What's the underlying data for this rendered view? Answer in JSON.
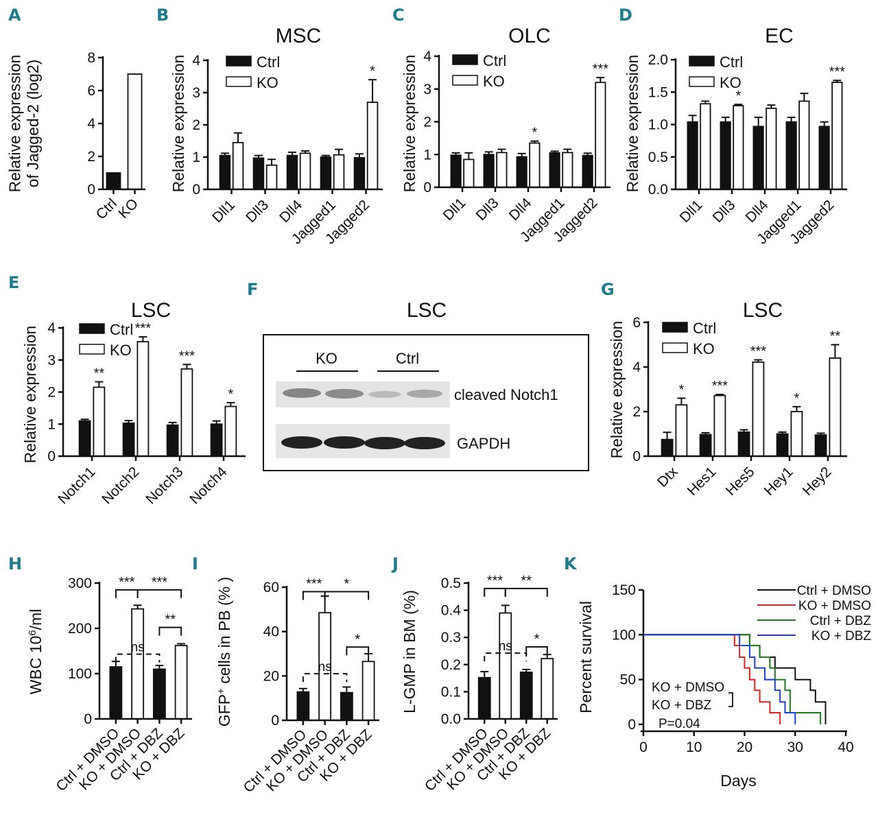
{
  "panel_labels": [
    "A",
    "B",
    "C",
    "D",
    "E",
    "F",
    "G",
    "H",
    "I",
    "J",
    "K"
  ],
  "colors": {
    "ctrl": "#111111",
    "ko": "#ffffff",
    "edge": "#111111",
    "label": "#1e7c8c",
    "km_ctrl_dmso": "#111111",
    "km_ko_dmso": "#e02020",
    "km_ctrl_dbz": "#1f7a1f",
    "km_ko_dbz": "#1f3fd6"
  },
  "legend": {
    "ctrl": "Ctrl",
    "ko": "KO"
  },
  "blot": {
    "title": "LSC",
    "groups": [
      "KO",
      "Ctrl"
    ],
    "bands": [
      "cleaved Notch1",
      "GAPDH"
    ]
  },
  "chart_data": [
    {
      "id": "A",
      "type": "bar",
      "title": "",
      "ylabel": "Relative expression of Jagged-2 (log2)",
      "ylabel_lines": [
        "Relative expression",
        "of Jagged-2 (log2)"
      ],
      "categories": [
        "Ctrl",
        "KO"
      ],
      "values": [
        1.0,
        7.0
      ],
      "fills": [
        "ctrl",
        "ko"
      ],
      "ylim": [
        0,
        8
      ],
      "yticks": [
        "0",
        "2",
        "4",
        "6",
        "8"
      ]
    },
    {
      "id": "B",
      "type": "bar",
      "title": "MSC",
      "ylabel": "Relative expression",
      "categories": [
        "Dll1",
        "Dll3",
        "Dll4",
        "Jagged1",
        "Jagged2"
      ],
      "series": [
        {
          "name": "Ctrl",
          "values": [
            1.05,
            0.97,
            1.05,
            1.0,
            0.98
          ],
          "err": [
            0.07,
            0.08,
            0.1,
            0.05,
            0.12
          ]
        },
        {
          "name": "KO",
          "values": [
            1.45,
            0.75,
            1.12,
            1.07,
            2.7
          ],
          "err": [
            0.3,
            0.18,
            0.07,
            0.17,
            0.7
          ]
        }
      ],
      "stars": [
        "",
        "",
        "",
        "",
        "*"
      ],
      "ylim": [
        0,
        4
      ],
      "yticks": [
        "0",
        "1",
        "2",
        "3",
        "4"
      ]
    },
    {
      "id": "C",
      "type": "bar",
      "title": "OLC",
      "ylabel": "Relative expression",
      "categories": [
        "Dll1",
        "Dll3",
        "Dll4",
        "Jagged1",
        "Jagged2"
      ],
      "series": [
        {
          "name": "Ctrl",
          "values": [
            0.98,
            1.0,
            0.93,
            1.05,
            0.97
          ],
          "err": [
            0.07,
            0.08,
            0.1,
            0.05,
            0.07
          ]
        },
        {
          "name": "KO",
          "values": [
            0.85,
            1.06,
            1.35,
            1.06,
            3.2
          ],
          "err": [
            0.2,
            0.1,
            0.06,
            0.1,
            0.15
          ]
        }
      ],
      "stars": [
        "",
        "",
        "*",
        "",
        "***"
      ],
      "ylim": [
        0,
        4
      ],
      "yticks": [
        "0",
        "1",
        "2",
        "3",
        "4"
      ]
    },
    {
      "id": "D",
      "type": "bar",
      "title": "EC",
      "ylabel": "Relative expression",
      "categories": [
        "Dll1",
        "Dll3",
        "Dll4",
        "Jagged1",
        "Jagged2"
      ],
      "series": [
        {
          "name": "Ctrl",
          "values": [
            1.04,
            1.04,
            0.97,
            1.04,
            0.97
          ],
          "err": [
            0.1,
            0.07,
            0.14,
            0.07,
            0.07
          ]
        },
        {
          "name": "KO",
          "values": [
            1.32,
            1.29,
            1.25,
            1.36,
            1.65
          ],
          "err": [
            0.04,
            0.02,
            0.05,
            0.12,
            0.03
          ]
        }
      ],
      "stars": [
        "",
        "*",
        "",
        "",
        "***"
      ],
      "ylim": [
        0,
        2
      ],
      "yticks": [
        "0.0",
        "0.5",
        "1.0",
        "1.5",
        "2.0"
      ]
    },
    {
      "id": "E",
      "type": "bar",
      "title": "LSC",
      "ylabel": "Relative expression",
      "categories": [
        "Notch1",
        "Notch2",
        "Notch3",
        "Notch4"
      ],
      "series": [
        {
          "name": "Ctrl",
          "values": [
            1.1,
            1.03,
            0.97,
            1.0
          ],
          "err": [
            0.05,
            0.08,
            0.08,
            0.1
          ]
        },
        {
          "name": "KO",
          "values": [
            2.15,
            3.57,
            2.72,
            1.55
          ],
          "err": [
            0.17,
            0.15,
            0.14,
            0.12
          ]
        }
      ],
      "stars": [
        "**",
        "***",
        "***",
        "*"
      ],
      "ylim": [
        0,
        4
      ],
      "yticks": [
        "0",
        "1",
        "2",
        "3",
        "4"
      ]
    },
    {
      "id": "G",
      "type": "bar",
      "title": "LSC",
      "ylabel": "Relative expression",
      "categories": [
        "Dtx",
        "Hes1",
        "Hes5",
        "Hey1",
        "Hey2"
      ],
      "series": [
        {
          "name": "Ctrl",
          "values": [
            0.75,
            0.97,
            1.08,
            1.0,
            0.95
          ],
          "err": [
            0.32,
            0.08,
            0.1,
            0.08,
            0.08
          ]
        },
        {
          "name": "KO",
          "values": [
            2.3,
            2.72,
            4.22,
            2.0,
            4.4
          ],
          "err": [
            0.3,
            0.05,
            0.1,
            0.22,
            0.6
          ]
        }
      ],
      "stars": [
        "*",
        "***",
        "***",
        "*",
        "**"
      ],
      "ylim": [
        0,
        6
      ],
      "yticks": [
        "0",
        "2",
        "4",
        "6"
      ]
    },
    {
      "id": "H",
      "type": "bar",
      "title": "",
      "ylabel": "WBC 10^6/ml",
      "ylabel_parts": [
        "WBC 10",
        "6",
        "/ml"
      ],
      "categories": [
        "Ctrl + DMSO",
        "KO + DMSO",
        "Ctrl + DBZ",
        "KO + DBZ"
      ],
      "values": [
        115,
        243,
        110,
        162
      ],
      "err": [
        12,
        8,
        8,
        4
      ],
      "fills": [
        "ctrl",
        "ko",
        "ctrl",
        "ko"
      ],
      "ylim": [
        0,
        300
      ],
      "yticks": [
        "0",
        "100",
        "200",
        "300"
      ],
      "brackets": [
        {
          "from": 0,
          "to": 1,
          "level": 285,
          "label": "***",
          "dashed": false
        },
        {
          "from": 1,
          "to": 3,
          "level": 285,
          "label": "***",
          "dashed": false
        },
        {
          "from": 2,
          "to": 3,
          "level": 202,
          "label": "**",
          "dashed": false
        },
        {
          "from": 0,
          "to": 2,
          "level": 143,
          "label": "ns",
          "dashed": true
        }
      ]
    },
    {
      "id": "I",
      "type": "bar",
      "title": "",
      "ylabel": "GFP+ cells in PB (%)",
      "ylabel_parts": [
        "GFP",
        "+",
        " cells in PB (% )"
      ],
      "categories": [
        "Ctrl + DMSO",
        "KO + DMSO",
        "Ctrl + DBZ",
        "KO + DBZ"
      ],
      "values": [
        12.8,
        48.5,
        12.5,
        26.5
      ],
      "err": [
        1.5,
        7.5,
        2.5,
        3.5
      ],
      "fills": [
        "ctrl",
        "ko",
        "ctrl",
        "ko"
      ],
      "ylim": [
        0,
        60
      ],
      "yticks": [
        "0",
        "20",
        "40",
        "60"
      ],
      "brackets": [
        {
          "from": 0,
          "to": 1,
          "level": 58,
          "label": "***",
          "dashed": false
        },
        {
          "from": 1,
          "to": 3,
          "level": 58,
          "label": "*",
          "dashed": false
        },
        {
          "from": 2,
          "to": 3,
          "level": 33,
          "label": "*",
          "dashed": false
        },
        {
          "from": 0,
          "to": 2,
          "level": 21,
          "label": "ns",
          "dashed": true
        }
      ]
    },
    {
      "id": "J",
      "type": "bar",
      "title": "",
      "ylabel": "L-GMP in BM (%)",
      "categories": [
        "Ctrl + DMSO",
        "KO + DMSO",
        "Ctrl + DBZ",
        "KO + DBZ"
      ],
      "values": [
        0.152,
        0.39,
        0.172,
        0.222
      ],
      "err": [
        0.022,
        0.028,
        0.01,
        0.015
      ],
      "fills": [
        "ctrl",
        "ko",
        "ctrl",
        "ko"
      ],
      "ylim": [
        0,
        0.5
      ],
      "yticks": [
        "0.0",
        "0.1",
        "0.2",
        "0.3",
        "0.4",
        "0.5"
      ],
      "brackets": [
        {
          "from": 0,
          "to": 1,
          "level": 0.48,
          "label": "***",
          "dashed": false
        },
        {
          "from": 1,
          "to": 3,
          "level": 0.48,
          "label": "**",
          "dashed": false
        },
        {
          "from": 2,
          "to": 3,
          "level": 0.265,
          "label": "*",
          "dashed": false
        },
        {
          "from": 0,
          "to": 2,
          "level": 0.242,
          "label": "ns",
          "dashed": true
        }
      ]
    },
    {
      "id": "K",
      "type": "line",
      "subtype": "kaplan-meier",
      "ylabel": "Percent survival",
      "xlabel": "Days",
      "xlim": [
        0,
        40
      ],
      "ylim": [
        0,
        150
      ],
      "xticks": [
        "0",
        "10",
        "20",
        "30",
        "40"
      ],
      "yticks": [
        "0",
        "50",
        "100",
        "150"
      ],
      "series": [
        {
          "name": "Ctrl + DMSO",
          "color": "km_ctrl_dmso",
          "steps": [
            [
              0,
              100
            ],
            [
              21,
              100
            ],
            [
              21,
              88
            ],
            [
              23,
              88
            ],
            [
              23,
              75
            ],
            [
              26,
              75
            ],
            [
              26,
              63
            ],
            [
              30,
              63
            ],
            [
              30,
              50
            ],
            [
              33,
              50
            ],
            [
              33,
              38
            ],
            [
              34,
              38
            ],
            [
              34,
              25
            ],
            [
              36,
              25
            ],
            [
              36,
              0
            ]
          ]
        },
        {
          "name": "KO + DMSO",
          "color": "km_ko_dmso",
          "steps": [
            [
              0,
              100
            ],
            [
              18,
              100
            ],
            [
              18,
              88
            ],
            [
              19,
              88
            ],
            [
              19,
              75
            ],
            [
              20,
              75
            ],
            [
              20,
              63
            ],
            [
              21,
              63
            ],
            [
              21,
              50
            ],
            [
              22,
              50
            ],
            [
              22,
              38
            ],
            [
              23,
              38
            ],
            [
              23,
              25
            ],
            [
              25,
              25
            ],
            [
              25,
              13
            ],
            [
              27,
              13
            ],
            [
              27,
              0
            ]
          ]
        },
        {
          "name": "Ctrl + DBZ",
          "color": "km_ctrl_dbz",
          "steps": [
            [
              0,
              100
            ],
            [
              21,
              100
            ],
            [
              21,
              88
            ],
            [
              23,
              88
            ],
            [
              23,
              75
            ],
            [
              25,
              75
            ],
            [
              25,
              63
            ],
            [
              26,
              63
            ],
            [
              26,
              50
            ],
            [
              28,
              50
            ],
            [
              28,
              38
            ],
            [
              29,
              38
            ],
            [
              29,
              13
            ],
            [
              35,
              13
            ],
            [
              35,
              0
            ]
          ]
        },
        {
          "name": "KO + DBZ",
          "color": "km_ko_dbz",
          "steps": [
            [
              0,
              100
            ],
            [
              19,
              100
            ],
            [
              19,
              88
            ],
            [
              21,
              88
            ],
            [
              21,
              75
            ],
            [
              22,
              75
            ],
            [
              22,
              63
            ],
            [
              24,
              63
            ],
            [
              24,
              50
            ],
            [
              26,
              50
            ],
            [
              26,
              38
            ],
            [
              27,
              38
            ],
            [
              27,
              25
            ],
            [
              28,
              25
            ],
            [
              28,
              13
            ],
            [
              30,
              13
            ],
            [
              30,
              0
            ]
          ]
        }
      ],
      "annotation": [
        "KO + DMSO",
        "KO + DBZ"
      ],
      "pvalue": "P=0.04"
    }
  ]
}
